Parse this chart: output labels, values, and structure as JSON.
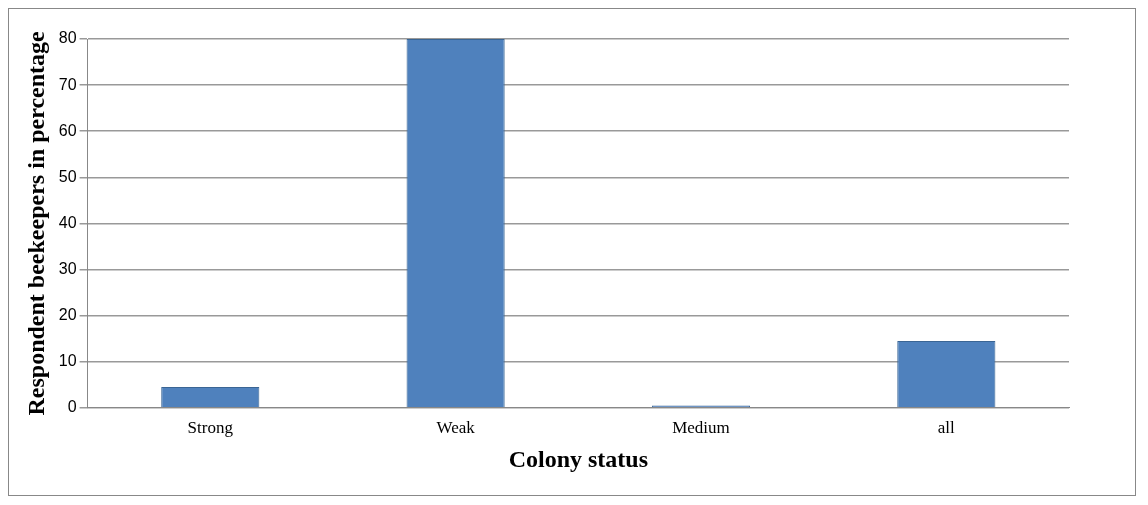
{
  "chart_data": {
    "type": "bar",
    "xlabel": "Colony status",
    "ylabel": "Respondent beekeepers in percentage",
    "categories": [
      "Strong",
      "Weak",
      "Medium",
      "all"
    ],
    "values": [
      4.5,
      80,
      0.5,
      14.5
    ],
    "color": "#4f81bd",
    "ylim": [
      0,
      80
    ],
    "yticks": [
      0,
      10,
      20,
      30,
      40,
      50,
      60,
      70,
      80
    ],
    "grid": "y",
    "legend": false
  }
}
